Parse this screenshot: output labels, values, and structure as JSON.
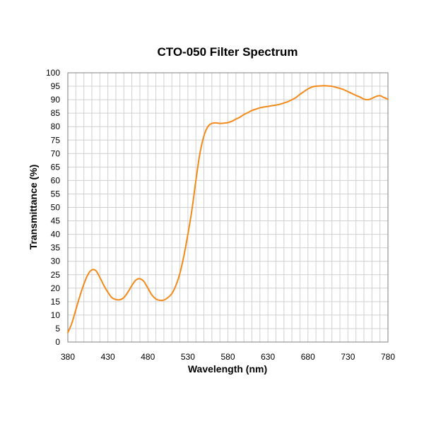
{
  "chart_data": {
    "type": "line",
    "title": "CTO-050 Filter Spectrum",
    "xlabel": "Wavelength (nm)",
    "ylabel": "Transmittance (%)",
    "xlim": [
      380,
      780
    ],
    "ylim": [
      0,
      100
    ],
    "x_ticks": [
      380,
      430,
      480,
      530,
      580,
      630,
      680,
      730,
      780
    ],
    "y_ticks": [
      0,
      5,
      10,
      15,
      20,
      25,
      30,
      35,
      40,
      45,
      50,
      55,
      60,
      65,
      70,
      75,
      80,
      85,
      90,
      95,
      100
    ],
    "grid": true,
    "series": [
      {
        "color": "#f28a1a",
        "x": [
          380,
          385,
          390,
          395,
          400,
          405,
          410,
          415,
          420,
          425,
          430,
          435,
          440,
          445,
          450,
          455,
          460,
          465,
          470,
          475,
          480,
          485,
          490,
          495,
          500,
          505,
          510,
          515,
          520,
          525,
          530,
          535,
          540,
          545,
          550,
          555,
          560,
          565,
          570,
          575,
          580,
          585,
          590,
          595,
          600,
          605,
          610,
          615,
          620,
          625,
          630,
          635,
          640,
          645,
          650,
          655,
          660,
          665,
          670,
          675,
          680,
          685,
          690,
          695,
          700,
          705,
          710,
          715,
          720,
          725,
          730,
          735,
          740,
          745,
          750,
          755,
          760,
          765,
          770,
          775,
          780
        ],
        "y": [
          3.5,
          7,
          12,
          17,
          21.5,
          25,
          26.8,
          26.5,
          24,
          21,
          18.5,
          16.5,
          15.8,
          15.7,
          16.5,
          18.5,
          21,
          23,
          23.5,
          22.5,
          20,
          17.5,
          16,
          15.5,
          15.6,
          16.5,
          18,
          21,
          25.5,
          32,
          40,
          49,
          60,
          70,
          76.5,
          80,
          81.2,
          81.4,
          81.2,
          81.3,
          81.5,
          82,
          82.8,
          83.5,
          84.5,
          85.2,
          86,
          86.5,
          87,
          87.3,
          87.5,
          87.8,
          88,
          88.3,
          88.8,
          89.3,
          90,
          90.8,
          92,
          93,
          94,
          94.7,
          95,
          95.1,
          95.2,
          95.1,
          95,
          94.6,
          94.2,
          93.7,
          93,
          92.3,
          91.6,
          91,
          90.2,
          90,
          90.5,
          91.2,
          91.5,
          90.8,
          90.2
        ]
      }
    ]
  }
}
